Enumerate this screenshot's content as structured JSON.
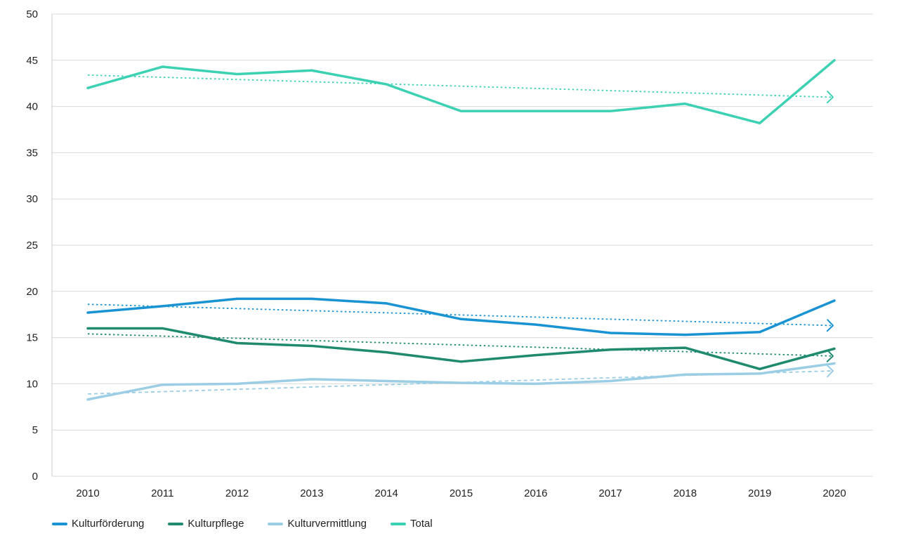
{
  "chart_data": {
    "type": "line",
    "title": "",
    "xlabel": "",
    "ylabel": "",
    "x": [
      "2010",
      "2011",
      "2012",
      "2013",
      "2014",
      "2015",
      "2016",
      "2017",
      "2018",
      "2019",
      "2020"
    ],
    "ylim": [
      0,
      50
    ],
    "yticks": [
      "0",
      "5",
      "10",
      "15",
      "20",
      "25",
      "30",
      "35",
      "40",
      "45",
      "50"
    ],
    "grid": "horizontal",
    "legend_position": "bottom-left",
    "series": [
      {
        "name": "Kulturförderung",
        "color": "#1a93d3",
        "values": [
          17.7,
          18.4,
          19.2,
          19.2,
          18.7,
          17.0,
          16.4,
          15.5,
          15.3,
          15.6,
          19.0
        ],
        "trend": [
          18.6,
          16.3
        ]
      },
      {
        "name": "Kulturpflege",
        "color": "#1f8a6e",
        "values": [
          16.0,
          16.0,
          14.4,
          14.1,
          13.4,
          12.4,
          13.1,
          13.7,
          13.9,
          11.6,
          13.8
        ],
        "trend": [
          15.4,
          13.0
        ]
      },
      {
        "name": "Kulturvermittlung",
        "color": "#9bcde4",
        "values": [
          8.3,
          9.9,
          10.0,
          10.5,
          10.3,
          10.1,
          10.0,
          10.3,
          11.0,
          11.1,
          12.2
        ],
        "trend": [
          8.9,
          11.4
        ]
      },
      {
        "name": "Total",
        "color": "#3dd1b3",
        "values": [
          42.0,
          44.3,
          43.5,
          43.9,
          42.4,
          39.5,
          39.5,
          39.5,
          40.3,
          38.2,
          45.0
        ],
        "trend": [
          43.4,
          41.0
        ]
      }
    ]
  }
}
